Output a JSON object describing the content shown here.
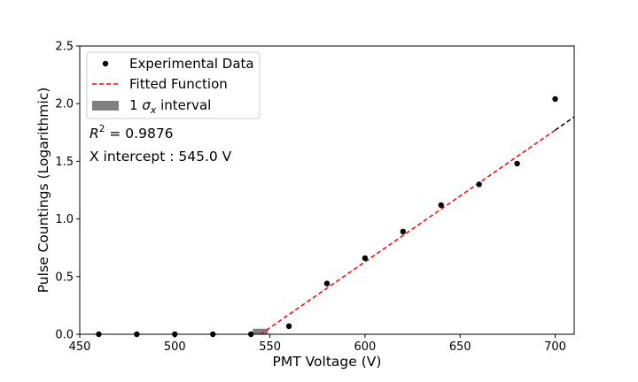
{
  "chart_data": {
    "type": "scatter",
    "xlabel": "PMT Voltage (V)",
    "ylabel": "Pulse Countings (Logarithmic)",
    "xlim": [
      450,
      710
    ],
    "ylim": [
      0,
      2.5
    ],
    "xticks": [
      "450",
      "500",
      "550",
      "600",
      "650",
      "700"
    ],
    "yticks": [
      "0.0",
      "0.5",
      "1.0",
      "1.5",
      "2.0",
      "2.5"
    ],
    "grid": false,
    "legend_position": "top-left",
    "series": [
      {
        "name": "Experimental Data",
        "kind": "points",
        "color": "#000000",
        "x": [
          460,
          480,
          500,
          520,
          540,
          560,
          580,
          600,
          620,
          640,
          660,
          680,
          700
        ],
        "y": [
          0.0,
          0.0,
          0.0,
          0.0,
          0.0,
          0.07,
          0.44,
          0.66,
          0.89,
          1.12,
          1.3,
          1.48,
          2.04
        ]
      },
      {
        "name": "Fitted Function",
        "kind": "dashed-line",
        "color": "#ff0000",
        "x": [
          545,
          700
        ],
        "y": [
          0.0,
          1.77
        ]
      },
      {
        "name": "",
        "kind": "dashed-line",
        "color": "#000000",
        "x": [
          700,
          710
        ],
        "y": [
          1.77,
          1.885
        ]
      },
      {
        "name": "1 σx interval",
        "kind": "band",
        "color": "#808080",
        "x": [
          541,
          549
        ],
        "y": [
          0.0,
          0.025
        ]
      }
    ],
    "legend": [
      {
        "label": "Experimental Data",
        "marker": "point",
        "color": "#000000"
      },
      {
        "label": "Fitted Function",
        "marker": "dashed-line",
        "color": "#ff0000"
      },
      {
        "label_prefix": "1 ",
        "label_sigma": "σ",
        "label_sub": "x",
        "label_suffix": " interval",
        "marker": "patch",
        "color": "#808080"
      }
    ],
    "annotations": {
      "r2_label": "R",
      "r2_exp": "2",
      "r2_value": " = 0.9876",
      "intercept": "X intercept : 545.0 V"
    }
  }
}
